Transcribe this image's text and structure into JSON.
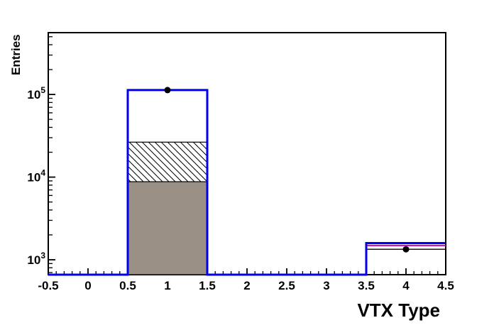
{
  "chart_data": {
    "type": "bar",
    "subtype": "root-log-histogram-overlay",
    "title": "",
    "xlabel": "VTX Type",
    "ylabel": "Entries",
    "x_range": [
      -0.5,
      4.5
    ],
    "x_minor_step": 0.1,
    "x_label_step": 0.5,
    "x_tick_labels": [
      "-0.5",
      "0",
      "0.5",
      "1",
      "1.5",
      "2",
      "2.5",
      "3",
      "3.5",
      "4",
      "4.5"
    ],
    "y_scale": "log",
    "y_range": [
      660,
      560000
    ],
    "y_tick_base": "10",
    "y_tick_exponents": [
      3,
      4,
      5
    ],
    "grid": false,
    "legend": "none",
    "bin_edges": [
      -0.5,
      0.5,
      1.5,
      2.5,
      3.5,
      4.5
    ],
    "series": [
      {
        "name": "hatched-histogram",
        "style": "hatch-fill",
        "line_color": "#000000",
        "hatch_color": "#000000",
        "values": [
          0,
          26500,
          0,
          0,
          0
        ]
      },
      {
        "name": "gray-filled-histogram",
        "style": "solid-fill",
        "fill_color": "#9A9086",
        "line_color": "#000000",
        "values": [
          0,
          8800,
          0,
          0,
          0
        ]
      },
      {
        "name": "black-line-histogram",
        "style": "step-line",
        "line_color": "#000000",
        "line_width": 1.3,
        "values": [
          0,
          113000,
          0,
          0,
          1340
        ]
      },
      {
        "name": "magenta-line-histogram",
        "style": "step-line",
        "line_color": "#CC00CC",
        "line_width": 2,
        "values": [
          0,
          113000,
          0,
          0,
          1490
        ]
      },
      {
        "name": "blue-line-histogram",
        "style": "step-line",
        "line_color": "#0000EE",
        "line_width": 3,
        "values": [
          0,
          113000,
          0,
          0,
          1590
        ]
      },
      {
        "name": "data-points",
        "style": "marker",
        "marker_color": "#000000",
        "marker_radius": 4.5,
        "points": [
          {
            "x": 1,
            "y": 113000
          },
          {
            "x": 4,
            "y": 1340
          }
        ]
      }
    ]
  }
}
